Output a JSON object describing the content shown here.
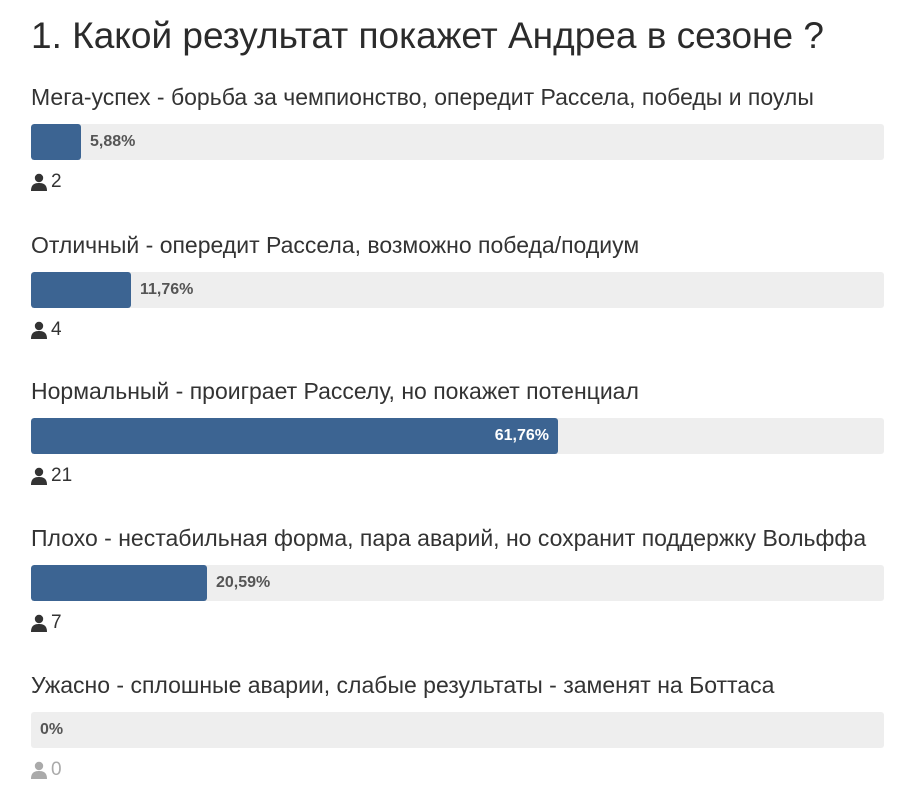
{
  "poll": {
    "title": "1. Какой результат покажет Андреа в сезоне ?",
    "icon": "user-icon",
    "bar_color": "#3c6492",
    "track_color": "#eeeeee",
    "options": [
      {
        "label": "Мега-успех - борьба за чемпионство, опередит Рассела, победы и поулы",
        "percent_text": "5,88%",
        "percent": 5.88,
        "votes": "2"
      },
      {
        "label": "Отличный - опередит Рассела, возможно победа/подиум",
        "percent_text": "11,76%",
        "percent": 11.76,
        "votes": "4"
      },
      {
        "label": "Нормальный - проиграет Расселу, но покажет потенциал",
        "percent_text": "61,76%",
        "percent": 61.76,
        "votes": "21"
      },
      {
        "label": "Плохо - нестабильная форма, пара аварий, но сохранит поддержку Вольффа",
        "percent_text": "20,59%",
        "percent": 20.59,
        "votes": "7"
      },
      {
        "label": "Ужасно - сплошные аварии, слабые результаты - заменят на Боттаса",
        "percent_text": "0%",
        "percent": 0,
        "votes": "0"
      }
    ]
  }
}
